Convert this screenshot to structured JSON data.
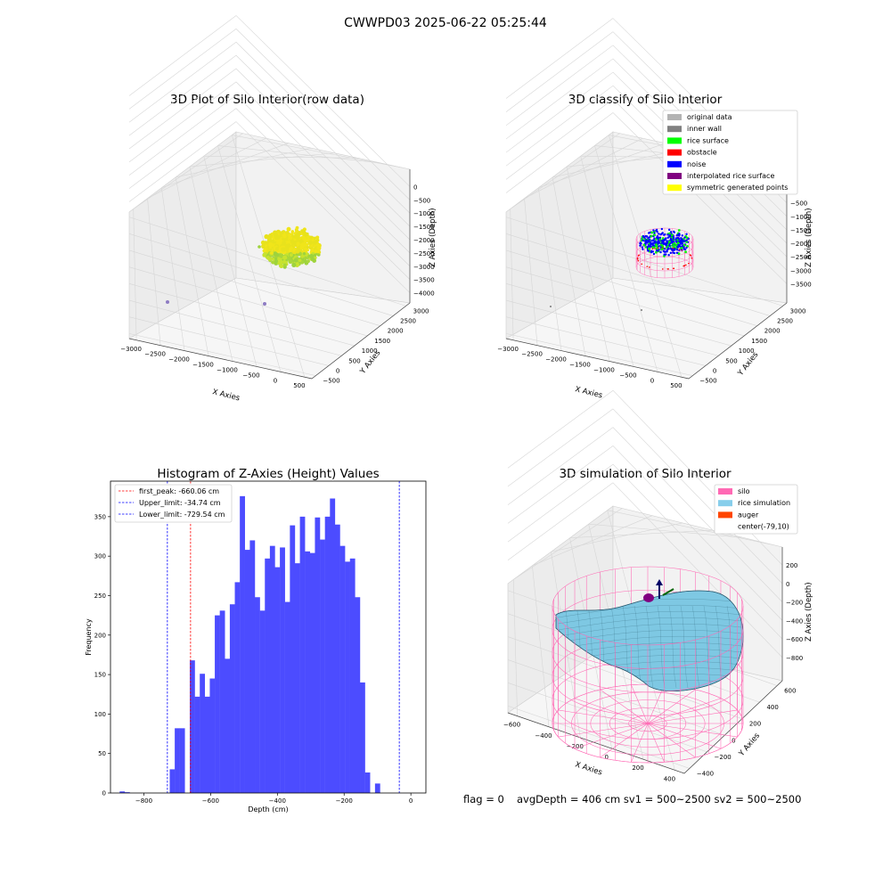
{
  "figure": {
    "suptitle": "CWWPD03 2025-06-22 05:25:44"
  },
  "colors": {
    "plot1_points": [
      "#f0e51a",
      "#e8e21c",
      "#c7e32e",
      "#a9d63a",
      "#9ed33d"
    ],
    "outlier_point": "#8e7cc3",
    "silo_wire": "#ff69b4",
    "rice_surface": "#7ec8e3",
    "hist_bar": "#4c4cff",
    "peak_line": "#ff0000",
    "limit_line": "#0000ff"
  },
  "panels": {
    "raw": {
      "title": "3D Plot of Silo Interior(row data)",
      "xlabel": "X Axies",
      "ylabel": "Y Axies",
      "zlabel": "Z Axies (Depth)",
      "xticks": [
        "−3000",
        "−2500",
        "−2000",
        "−1500",
        "−1000",
        "−500",
        "0",
        "500"
      ],
      "yticks": [
        "−500",
        "0",
        "500",
        "1000",
        "1500",
        "2000",
        "2500",
        "3000"
      ],
      "zticks": [
        "0",
        "−500",
        "−1000",
        "−1500",
        "−2000",
        "−2500",
        "−3000",
        "−3500",
        "−4000"
      ]
    },
    "classify": {
      "title": "3D classify of Silo Interior",
      "xlabel": "X Axies",
      "ylabel": "Y Axies",
      "zlabel": "Z Axies (Depth)",
      "xticks": [
        "−3000",
        "−2500",
        "−2000",
        "−1500",
        "−1000",
        "−500",
        "0",
        "500"
      ],
      "yticks": [
        "−500",
        "0",
        "500",
        "1000",
        "1500",
        "2000",
        "2500",
        "3000"
      ],
      "zticks": [
        "0",
        "−500",
        "−1000",
        "−1500",
        "−2000",
        "−2500",
        "−3000",
        "−3500"
      ],
      "legend": [
        {
          "label": "original data",
          "color": "#b3b3b3"
        },
        {
          "label": "inner wall",
          "color": "#808080"
        },
        {
          "label": "rice surface",
          "color": "#00ff00"
        },
        {
          "label": "obstacle",
          "color": "#ff0000"
        },
        {
          "label": "noise",
          "color": "#0000ff"
        },
        {
          "label": "interpolated rice surface",
          "color": "#800080"
        },
        {
          "label": "symmetric generated points",
          "color": "#ffff00"
        }
      ]
    },
    "simulation": {
      "title": "3D simulation of Silo Interior",
      "xlabel": "X Axies",
      "ylabel": "Y Axies",
      "zlabel": "Z Axies (Depth)",
      "xticks": [
        "−600",
        "−400",
        "−200",
        "0",
        "200",
        "400"
      ],
      "yticks": [
        "−400",
        "−200",
        "0",
        "200",
        "400",
        "600"
      ],
      "zticks": [
        "200",
        "0",
        "−200",
        "−400",
        "−600",
        "−800"
      ],
      "legend": [
        {
          "label": "silo",
          "color": "#ff69b4"
        },
        {
          "label": "rice simulation",
          "color": "#87ceeb"
        },
        {
          "label": "auger",
          "color": "#ff4500"
        },
        {
          "label": "center(-79,10)",
          "color": "#ffffff"
        }
      ]
    }
  },
  "footer": {
    "flag": "flag = 0",
    "avg": "avgDepth = 406 cm  sv1 = 500~2500  sv2 = 500~2500"
  },
  "chart_data": [
    {
      "type": "scatter",
      "title": "3D Plot of Silo Interior(row data)",
      "xlabel": "X Axies",
      "ylabel": "Y Axies",
      "zlabel": "Z Axies (Depth)",
      "xlim": [
        -3000,
        500
      ],
      "ylim": [
        -500,
        3000
      ],
      "zlim": [
        -4000,
        0
      ],
      "outliers": [
        {
          "x": -3000,
          "y": 0,
          "z": -4000
        },
        {
          "x": -500,
          "y": 0,
          "z": -3500
        }
      ],
      "cluster": {
        "x_center": -1200,
        "y_center": 1500,
        "z_range": [
          -2600,
          -1700
        ]
      }
    },
    {
      "type": "scatter",
      "title": "3D classify of Silo Interior",
      "xlabel": "X Axies",
      "ylabel": "Y Axies",
      "zlabel": "Z Axies (Depth)",
      "xlim": [
        -3000,
        500
      ],
      "ylim": [
        -500,
        3000
      ],
      "zlim": [
        -3500,
        0
      ],
      "legend_placement": "top-right"
    },
    {
      "type": "bar",
      "title": "Histogram of Z-Axies (Height) Values",
      "xlabel": "Depth (cm)",
      "ylabel": "Frequency",
      "xlim": [
        -900,
        45
      ],
      "ylim": [
        0,
        395
      ],
      "xticks": [
        -800,
        -600,
        -400,
        -200,
        0
      ],
      "yticks": [
        0,
        50,
        100,
        150,
        200,
        250,
        300,
        350
      ],
      "bin_width": 15,
      "bins": [
        {
          "x": -865,
          "y": 2
        },
        {
          "x": -850,
          "y": 1
        },
        {
          "x": -715,
          "y": 30
        },
        {
          "x": -700,
          "y": 82
        },
        {
          "x": -685,
          "y": 82
        },
        {
          "x": -655,
          "y": 168
        },
        {
          "x": -640,
          "y": 122
        },
        {
          "x": -625,
          "y": 151
        },
        {
          "x": -610,
          "y": 122
        },
        {
          "x": -595,
          "y": 145
        },
        {
          "x": -580,
          "y": 225
        },
        {
          "x": -565,
          "y": 231
        },
        {
          "x": -550,
          "y": 170
        },
        {
          "x": -535,
          "y": 239
        },
        {
          "x": -520,
          "y": 267
        },
        {
          "x": -505,
          "y": 376
        },
        {
          "x": -490,
          "y": 308
        },
        {
          "x": -475,
          "y": 320
        },
        {
          "x": -460,
          "y": 248
        },
        {
          "x": -445,
          "y": 231
        },
        {
          "x": -430,
          "y": 297
        },
        {
          "x": -415,
          "y": 313
        },
        {
          "x": -400,
          "y": 286
        },
        {
          "x": -385,
          "y": 311
        },
        {
          "x": -370,
          "y": 242
        },
        {
          "x": -355,
          "y": 339
        },
        {
          "x": -340,
          "y": 291
        },
        {
          "x": -325,
          "y": 350
        },
        {
          "x": -310,
          "y": 306
        },
        {
          "x": -295,
          "y": 304
        },
        {
          "x": -280,
          "y": 349
        },
        {
          "x": -265,
          "y": 321
        },
        {
          "x": -250,
          "y": 350
        },
        {
          "x": -235,
          "y": 373
        },
        {
          "x": -220,
          "y": 340
        },
        {
          "x": -205,
          "y": 313
        },
        {
          "x": -190,
          "y": 293
        },
        {
          "x": -175,
          "y": 297
        },
        {
          "x": -160,
          "y": 248
        },
        {
          "x": -145,
          "y": 140
        },
        {
          "x": -130,
          "y": 26
        },
        {
          "x": -100,
          "y": 12
        }
      ],
      "lines": [
        {
          "label": "first_peak: -660.06 cm",
          "x": -660.06,
          "color": "#ff0000"
        },
        {
          "label": "Upper_limit: -34.74 cm",
          "x": -34.74,
          "color": "#0000ff"
        },
        {
          "label": "Lower_limit: -729.54 cm",
          "x": -729.54,
          "color": "#0000ff"
        }
      ],
      "legend_placement": "top-left"
    },
    {
      "type": "surface",
      "title": "3D simulation of Silo Interior",
      "xlabel": "X Axies",
      "ylabel": "Y Axies",
      "zlabel": "Z Axies (Depth)",
      "xlim": [
        -700,
        500
      ],
      "ylim": [
        -500,
        650
      ],
      "zlim": [
        -950,
        300
      ],
      "legend_placement": "top-right"
    }
  ]
}
